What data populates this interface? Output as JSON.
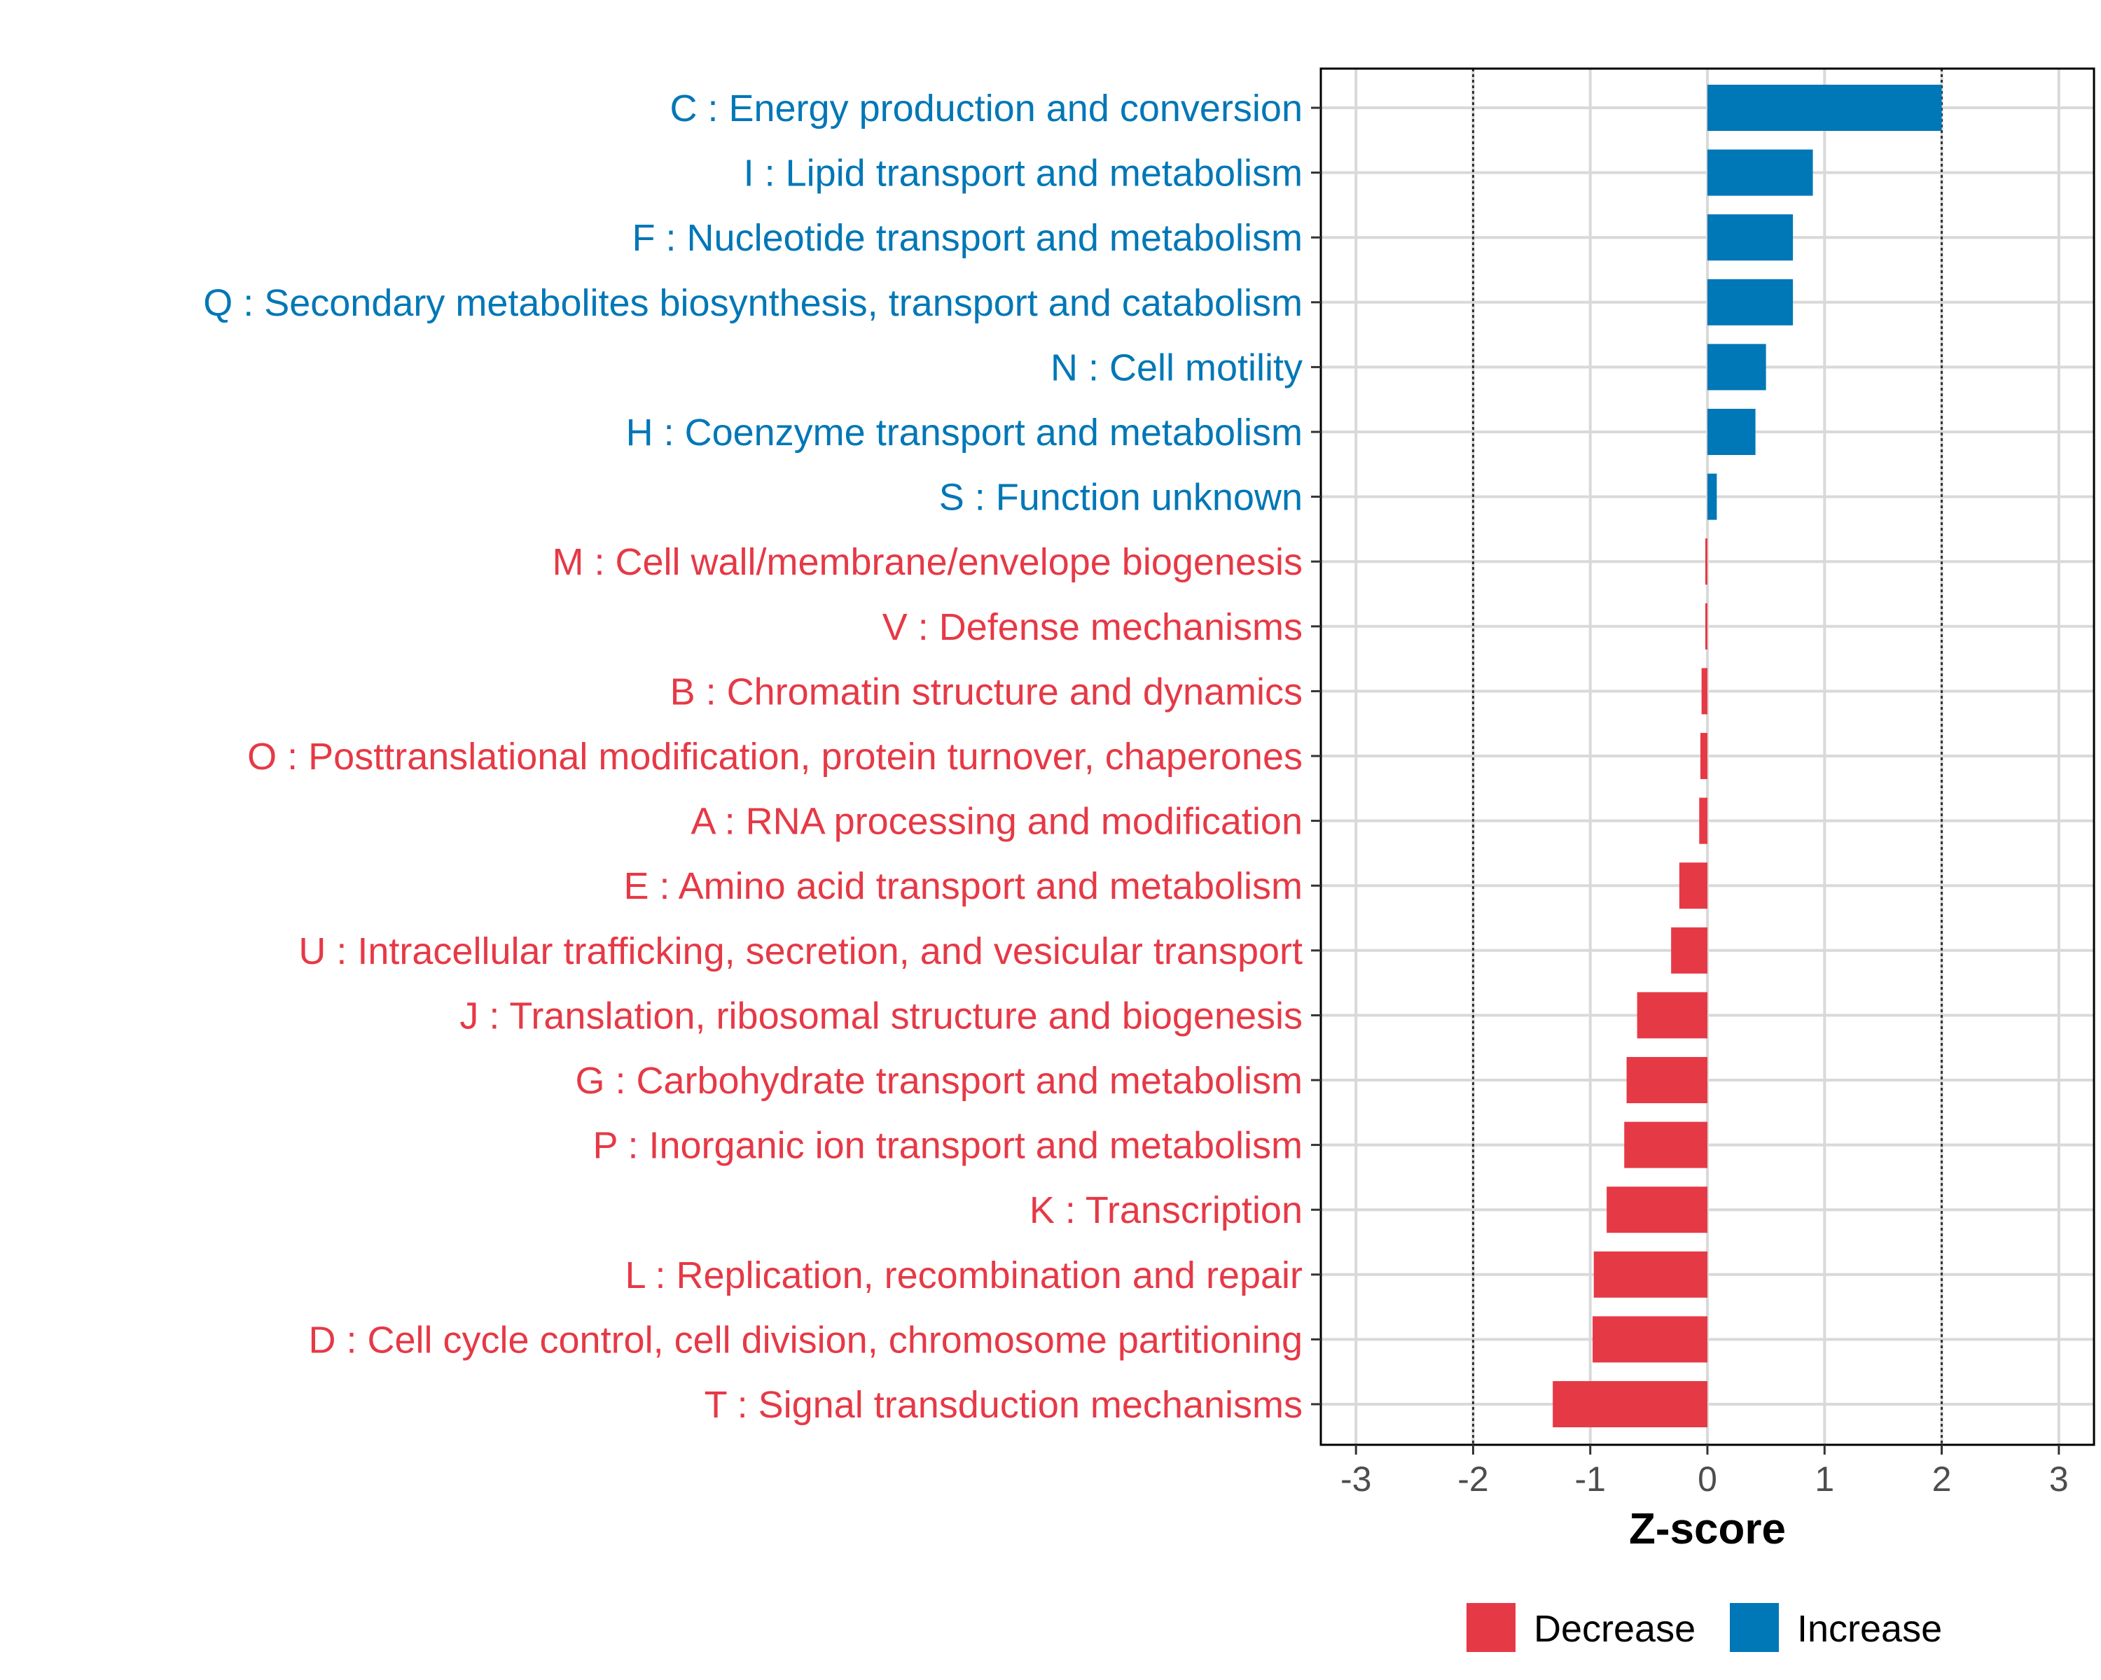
{
  "chart_data": {
    "type": "bar",
    "orientation": "horizontal",
    "categories": [
      "C : Energy production and conversion",
      "I : Lipid transport and metabolism",
      "F : Nucleotide transport and metabolism",
      "Q : Secondary metabolites biosynthesis, transport and catabolism",
      "N : Cell motility",
      "H : Coenzyme transport and metabolism",
      "S : Function unknown",
      "M : Cell wall/membrane/envelope biogenesis",
      "V : Defense mechanisms",
      "B : Chromatin structure and dynamics",
      "O : Posttranslational modification, protein turnover, chaperones",
      "A : RNA processing and modification",
      "E : Amino acid transport and metabolism",
      "U : Intracellular trafficking, secretion, and vesicular transport",
      "J : Translation, ribosomal structure and biogenesis",
      "G : Carbohydrate transport and metabolism",
      "P : Inorganic ion transport and metabolism",
      "K : Transcription",
      "L : Replication, recombination and repair",
      "D : Cell cycle control, cell division, chromosome partitioning",
      "T : Signal transduction mechanisms"
    ],
    "values": [
      2.0,
      0.9,
      0.73,
      0.73,
      0.5,
      0.41,
      0.08,
      -0.01,
      -0.01,
      -0.05,
      -0.06,
      -0.07,
      -0.24,
      -0.31,
      -0.6,
      -0.69,
      -0.71,
      -0.86,
      -0.97,
      -0.98,
      -1.32
    ],
    "xlabel": "Z-score",
    "ylabel": "",
    "xlim": [
      -3.3,
      3.3
    ],
    "xticks": [
      -3,
      -2,
      -1,
      0,
      1,
      2,
      3
    ],
    "xtick_labels": [
      "-3",
      "-2",
      "-1",
      "0",
      "1",
      "2",
      "3"
    ],
    "reference_lines": [
      -2,
      2
    ],
    "grid": true,
    "legend": {
      "placement": "bottom",
      "entries": [
        {
          "label": "Decrease",
          "color": "#E63946"
        },
        {
          "label": "Increase",
          "color": "#0077B6"
        }
      ]
    },
    "colors": {
      "increase": "#0077B6",
      "decrease": "#E63946"
    }
  }
}
